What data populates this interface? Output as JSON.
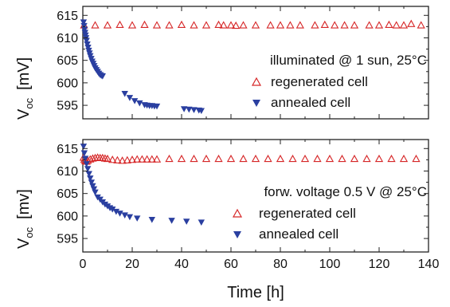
{
  "figure": {
    "xlabel": "Time [h]",
    "x_ticks": [
      "0",
      "20",
      "40",
      "60",
      "80",
      "100",
      "120",
      "140"
    ]
  },
  "colors": {
    "regenerated": "#d62728",
    "annealed": "#2a3fa0"
  },
  "chart_data": [
    {
      "type": "scatter",
      "ylabel_main": "V",
      "ylabel_sub": "oc",
      "ylabel_unit": "[mV]",
      "xlim": [
        0,
        140
      ],
      "ylim": [
        592,
        617
      ],
      "y_ticks": [
        "615",
        "610",
        "605",
        "600",
        "595"
      ],
      "annotation": "illuminated @ 1 sun, 25°C",
      "legend": [
        {
          "label": "regenerated cell",
          "marker": "triangle-up-open",
          "color": "#d62728"
        },
        {
          "label": "annealed cell",
          "marker": "triangle-down-filled",
          "color": "#2a3fa0"
        }
      ],
      "series": [
        {
          "name": "regenerated cell",
          "x": [
            0.5,
            5,
            10,
            15,
            20,
            25,
            30,
            35,
            40,
            45,
            50,
            55,
            57,
            60,
            62,
            65,
            70,
            76,
            80,
            84,
            88,
            94,
            98,
            102,
            106,
            110,
            116,
            120,
            124,
            127,
            130,
            133,
            137
          ],
          "y": [
            612.8,
            612.8,
            612.8,
            612.9,
            612.8,
            612.9,
            612.8,
            612.8,
            612.9,
            612.8,
            612.8,
            612.9,
            612.8,
            612.8,
            612.7,
            612.8,
            612.8,
            612.8,
            612.8,
            612.8,
            612.8,
            612.8,
            612.9,
            612.8,
            612.8,
            612.8,
            612.8,
            612.8,
            612.9,
            612.8,
            612.8,
            613.1,
            612.8
          ]
        },
        {
          "name": "annealed cell",
          "x": [
            0.3,
            0.5,
            0.7,
            0.9,
            1.1,
            1.3,
            1.5,
            1.8,
            2.1,
            2.4,
            2.7,
            3.0,
            3.4,
            3.8,
            4.2,
            4.6,
            5.0,
            5.5,
            6.0,
            6.5,
            7.0,
            7.5,
            8.0,
            17,
            19,
            21,
            23,
            25,
            26,
            27,
            28,
            29,
            30,
            41,
            43,
            45,
            47,
            48
          ],
          "y": [
            613.5,
            612.7,
            611.9,
            611.2,
            610.6,
            610.0,
            609.4,
            608.6,
            607.9,
            607.2,
            606.6,
            606.0,
            605.4,
            604.8,
            604.3,
            603.8,
            603.3,
            602.9,
            602.5,
            602.1,
            601.8,
            601.6,
            601.5,
            597.6,
            596.7,
            596.0,
            595.5,
            595.1,
            595.0,
            594.9,
            594.9,
            594.8,
            594.8,
            594.2,
            594.1,
            594.0,
            593.9,
            593.8
          ]
        }
      ]
    },
    {
      "type": "scatter",
      "ylabel_main": "V",
      "ylabel_sub": "oc",
      "ylabel_unit": "[mv]",
      "xlim": [
        0,
        140
      ],
      "xlabel": "Time [h]",
      "ylim": [
        592,
        617
      ],
      "y_ticks": [
        "615",
        "610",
        "605",
        "600",
        "595"
      ],
      "annotation": "forw. voltage 0.5 V @ 25°C",
      "legend": [
        {
          "label": "regenerated cell",
          "marker": "triangle-up-open",
          "color": "#d62728"
        },
        {
          "label": "annealed cell",
          "marker": "triangle-down-filled",
          "color": "#2a3fa0"
        }
      ],
      "series": [
        {
          "name": "regenerated cell",
          "x": [
            0.3,
            0.6,
            1,
            1.5,
            2,
            3,
            4,
            5,
            6,
            7,
            8,
            9,
            10,
            12,
            14,
            16,
            18,
            20,
            22,
            24,
            26,
            28,
            30,
            35,
            40,
            45,
            50,
            55,
            60,
            65,
            70,
            75,
            80,
            85,
            90,
            95,
            100,
            105,
            110,
            115,
            120,
            125,
            130,
            135
          ],
          "y": [
            613.0,
            612.5,
            612.2,
            612.1,
            612.3,
            612.6,
            612.8,
            612.9,
            613.0,
            612.9,
            612.9,
            612.8,
            612.7,
            612.5,
            612.4,
            612.3,
            612.4,
            612.5,
            612.6,
            612.6,
            612.6,
            612.6,
            612.6,
            612.7,
            612.7,
            612.7,
            612.7,
            612.7,
            612.7,
            612.7,
            612.7,
            612.7,
            612.7,
            612.7,
            612.7,
            612.7,
            612.7,
            612.7,
            612.7,
            612.7,
            612.7,
            612.7,
            612.7,
            612.7
          ]
        },
        {
          "name": "annealed cell",
          "x": [
            0.3,
            0.6,
            1.0,
            1.5,
            2.0,
            2.5,
            3.0,
            3.5,
            4.0,
            4.5,
            5.0,
            6.0,
            7.0,
            8.0,
            9.0,
            10.0,
            11.0,
            12.0,
            13.5,
            15,
            17,
            19,
            22,
            28,
            36,
            42,
            48
          ],
          "y": [
            615.5,
            614.0,
            612.8,
            611.6,
            610.5,
            609.4,
            608.4,
            607.5,
            606.7,
            606.0,
            605.3,
            604.2,
            603.7,
            603.1,
            602.6,
            602.2,
            601.8,
            601.5,
            601.0,
            600.6,
            600.2,
            599.8,
            599.5,
            599.2,
            599.0,
            598.8,
            598.6
          ]
        }
      ]
    }
  ]
}
